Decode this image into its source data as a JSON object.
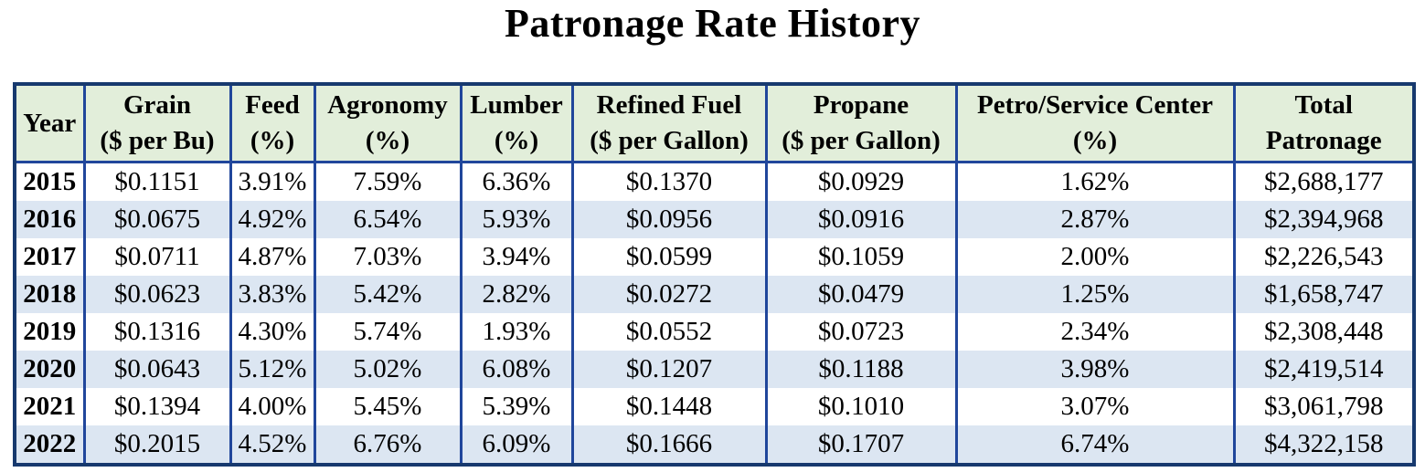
{
  "title": "Patronage Rate History",
  "colors": {
    "header_bg": "#E2EEDA",
    "alt_row_bg": "#DCE6F2",
    "grid_border": "#20469B",
    "frame_border": "#17396E",
    "text": "#000000"
  },
  "chart_data": {
    "type": "table",
    "title": "Patronage Rate History",
    "columns": [
      {
        "label": "Year",
        "unit": ""
      },
      {
        "label": "Grain",
        "unit": "($ per Bu)"
      },
      {
        "label": "Feed",
        "unit": "(%)"
      },
      {
        "label": "Agronomy",
        "unit": "(%)"
      },
      {
        "label": "Lumber",
        "unit": "(%)"
      },
      {
        "label": "Refined Fuel",
        "unit": "($ per Gallon)"
      },
      {
        "label": "Propane",
        "unit": "($ per Gallon)"
      },
      {
        "label": "Petro/Service Center",
        "unit": "(%)"
      },
      {
        "label": "Total",
        "unit": "Patronage"
      }
    ],
    "rows": [
      [
        "2015",
        "$0.1151",
        "3.91%",
        "7.59%",
        "6.36%",
        "$0.1370",
        "$0.0929",
        "1.62%",
        "$2,688,177"
      ],
      [
        "2016",
        "$0.0675",
        "4.92%",
        "6.54%",
        "5.93%",
        "$0.0956",
        "$0.0916",
        "2.87%",
        "$2,394,968"
      ],
      [
        "2017",
        "$0.0711",
        "4.87%",
        "7.03%",
        "3.94%",
        "$0.0599",
        "$0.1059",
        "2.00%",
        "$2,226,543"
      ],
      [
        "2018",
        "$0.0623",
        "3.83%",
        "5.42%",
        "2.82%",
        "$0.0272",
        "$0.0479",
        "1.25%",
        "$1,658,747"
      ],
      [
        "2019",
        "$0.1316",
        "4.30%",
        "5.74%",
        "1.93%",
        "$0.0552",
        "$0.0723",
        "2.34%",
        "$2,308,448"
      ],
      [
        "2020",
        "$0.0643",
        "5.12%",
        "5.02%",
        "6.08%",
        "$0.1207",
        "$0.1188",
        "3.98%",
        "$2,419,514"
      ],
      [
        "2021",
        "$0.1394",
        "4.00%",
        "5.45%",
        "5.39%",
        "$0.1448",
        "$0.1010",
        "3.07%",
        "$3,061,798"
      ],
      [
        "2022",
        "$0.2015",
        "4.52%",
        "6.76%",
        "6.09%",
        "$0.1666",
        "$0.1707",
        "6.74%",
        "$4,322,158"
      ]
    ]
  }
}
